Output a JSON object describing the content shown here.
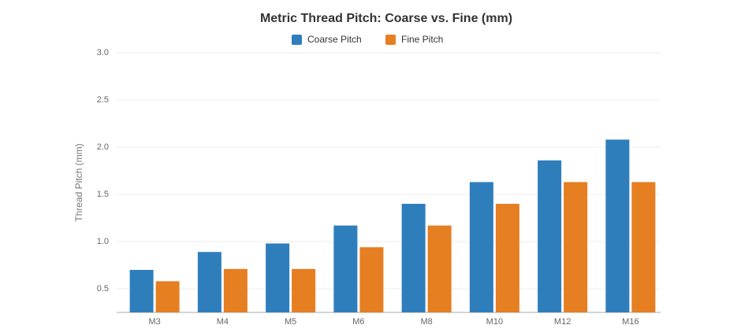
{
  "chart_data": {
    "type": "bar",
    "title": "Metric Thread Pitch: Coarse vs. Fine (mm)",
    "y_label": "Thread Pitch (mm)",
    "categories": [
      "M3",
      "M4",
      "M5",
      "M6",
      "M8",
      "M10",
      "M12",
      "M16"
    ],
    "series": [
      {
        "name": "Coarse Pitch",
        "color": "#2e7ebc",
        "values": [
          0.7,
          0.89,
          0.98,
          1.17,
          1.4,
          1.63,
          1.86,
          2.08
        ]
      },
      {
        "name": "Fine Pitch",
        "color": "#e67e22",
        "values": [
          0.58,
          0.71,
          0.71,
          0.94,
          1.17,
          1.4,
          1.63,
          1.63
        ]
      }
    ],
    "ylim": [
      0.25,
      3.0
    ],
    "yticks": [
      0.5,
      {
        "value": 1,
        "label": "1.0"
      },
      1.5,
      {
        "value": 2,
        "label": "2.0"
      },
      2.5,
      {
        "value": 3,
        "label": "3.0"
      }
    ],
    "grid": true,
    "legend": "top"
  }
}
